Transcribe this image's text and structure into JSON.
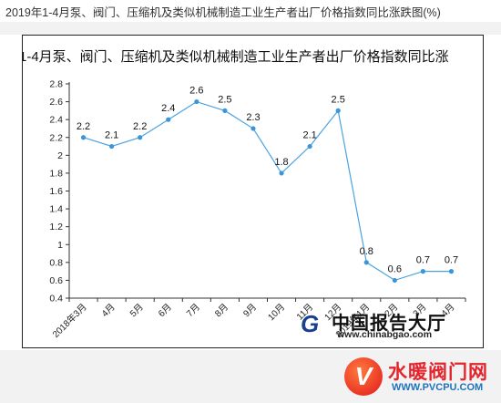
{
  "page": {
    "heading": "2019年1-4月泵、阀门、压缩机及类似机械制造工业生产者出厂价格指数同比涨跌图(%)"
  },
  "chart_data": {
    "type": "line",
    "title": "1-4月泵、阀门、压缩机及类似机械制造工业生产者出厂价格指数同比涨",
    "categories": [
      "2018年3月",
      "4月",
      "5月",
      "6月",
      "7月",
      "8月",
      "9月",
      "10月",
      "11月",
      "12月",
      "2019年1月",
      "2月",
      "3月",
      "4月"
    ],
    "values": [
      2.2,
      2.1,
      2.2,
      2.4,
      2.6,
      2.5,
      2.3,
      1.8,
      2.1,
      2.5,
      0.8,
      0.6,
      0.7,
      0.7
    ],
    "data_labels": [
      "2.2",
      "2.1",
      "2.2",
      "2.4",
      "2.6",
      "2.5",
      "2.3",
      "1.8",
      "2.1",
      "2.5",
      "0.8",
      "0.6",
      "0.7",
      "0.7"
    ],
    "ylim": [
      0.4,
      2.8
    ],
    "yticks": [
      "0.4",
      "0.6",
      "0.8",
      "1",
      "1.2",
      "1.4",
      "1.6",
      "1.8",
      "2",
      "2.2",
      "2.4",
      "2.6",
      "2.8"
    ],
    "xlabel": "",
    "ylabel": "",
    "grid": false,
    "legend": "none",
    "line_color": "#4aa3df",
    "marker_color": "#3b95d6"
  },
  "logo": {
    "mark": "G",
    "name": "中国报告大厅",
    "url": "www.chinabgao.com"
  },
  "watermark": {
    "badge": "V",
    "name": "水暖阀门网",
    "url": "WWW.PVCPU.COM"
  }
}
